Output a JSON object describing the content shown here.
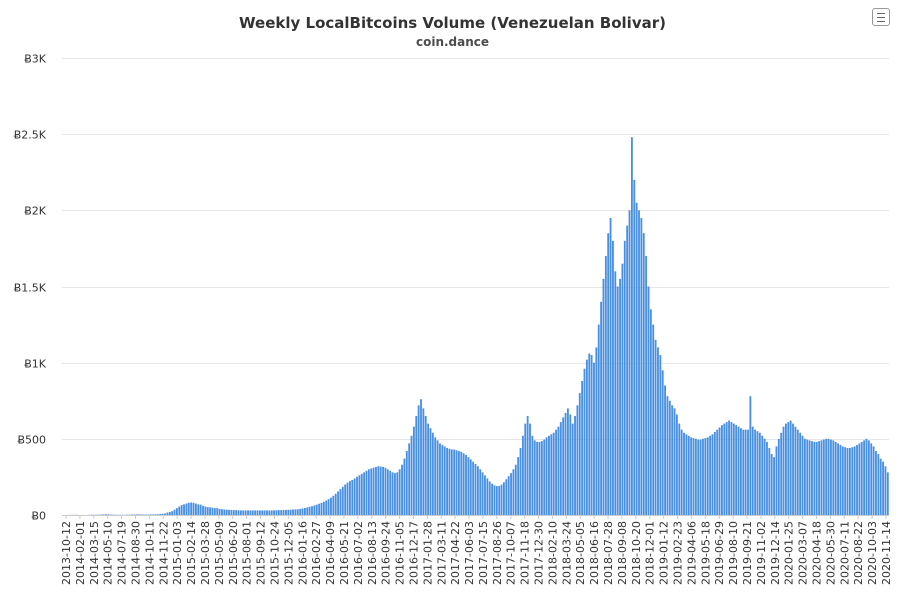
{
  "chart_data": {
    "type": "bar",
    "title": "Weekly LocalBitcoins Volume (Venezuelan Bolivar)",
    "subtitle": "coin.dance",
    "xlabel": "",
    "ylabel": "",
    "ylim": [
      0,
      3000
    ],
    "grid": true,
    "legend": "none",
    "bar_color": "#4a90e2",
    "y_ticks": [
      {
        "value": 0,
        "label": "Ƀ0"
      },
      {
        "value": 500,
        "label": "Ƀ500"
      },
      {
        "value": 1000,
        "label": "Ƀ1K"
      },
      {
        "value": 1500,
        "label": "Ƀ1.5K"
      },
      {
        "value": 2000,
        "label": "Ƀ2K"
      },
      {
        "value": 2500,
        "label": "Ƀ2.5K"
      },
      {
        "value": 3000,
        "label": "Ƀ3K"
      }
    ],
    "x_tick_labels": [
      "2013-10-12",
      "2014-02-01",
      "2014-03-15",
      "2014-05-10",
      "2014-07-19",
      "2014-08-30",
      "2014-10-11",
      "2014-11-22",
      "2015-01-03",
      "2015-02-14",
      "2015-03-28",
      "2015-05-09",
      "2015-06-20",
      "2015-08-01",
      "2015-09-12",
      "2015-10-24",
      "2015-12-05",
      "2016-01-16",
      "2016-02-27",
      "2016-04-09",
      "2016-05-21",
      "2016-07-02",
      "2016-08-13",
      "2016-09-24",
      "2016-11-05",
      "2016-12-17",
      "2017-01-28",
      "2017-03-11",
      "2017-04-22",
      "2017-06-03",
      "2017-07-15",
      "2017-08-26",
      "2017-10-07",
      "2017-11-18",
      "2017-12-30",
      "2018-02-10",
      "2018-03-24",
      "2018-05-05",
      "2018-06-16",
      "2018-07-28",
      "2018-09-08",
      "2018-10-20",
      "2018-12-01",
      "2019-01-12",
      "2019-02-23",
      "2019-04-06",
      "2019-05-18",
      "2019-06-29",
      "2019-08-10",
      "2019-09-21",
      "2019-11-02",
      "2019-12-14",
      "2020-01-25",
      "2020-03-07",
      "2020-04-18",
      "2020-05-30",
      "2020-07-11",
      "2020-08-22",
      "2020-10-03",
      "2020-11-14"
    ],
    "series": [
      {
        "values": [
          0,
          0,
          0,
          1,
          1,
          1,
          1,
          0,
          0,
          0,
          0,
          1,
          2,
          2,
          2,
          2,
          3,
          4,
          5,
          4,
          3,
          2,
          2,
          2,
          1,
          1,
          1,
          2,
          2,
          3,
          3,
          4,
          4,
          4,
          3,
          3,
          3,
          4,
          4,
          4,
          5,
          7,
          8,
          10,
          16,
          20,
          25,
          35,
          45,
          55,
          65,
          70,
          75,
          80,
          82,
          80,
          75,
          70,
          68,
          60,
          55,
          52,
          50,
          48,
          45,
          45,
          40,
          38,
          36,
          35,
          34,
          33,
          32,
          32,
          31,
          30,
          30,
          30,
          30,
          30,
          30,
          30,
          30,
          30,
          30,
          30,
          30,
          30,
          30,
          31,
          31,
          32,
          32,
          33,
          33,
          34,
          35,
          36,
          37,
          38,
          40,
          43,
          46,
          50,
          54,
          58,
          63,
          68,
          74,
          80,
          87,
          95,
          104,
          114,
          126,
          140,
          155,
          170,
          185,
          200,
          212,
          222,
          230,
          240,
          250,
          260,
          270,
          280,
          290,
          300,
          305,
          310,
          315,
          320,
          318,
          315,
          310,
          300,
          290,
          280,
          275,
          280,
          300,
          330,
          370,
          420,
          470,
          520,
          580,
          650,
          720,
          760,
          700,
          650,
          600,
          570,
          540,
          510,
          490,
          470,
          460,
          450,
          440,
          435,
          430,
          430,
          425,
          420,
          415,
          405,
          395,
          380,
          365,
          350,
          335,
          320,
          300,
          280,
          260,
          240,
          220,
          205,
          195,
          190,
          190,
          200,
          215,
          235,
          255,
          275,
          300,
          330,
          380,
          440,
          520,
          600,
          650,
          600,
          520,
          490,
          480,
          480,
          485,
          495,
          510,
          520,
          530,
          540,
          560,
          580,
          610,
          640,
          670,
          700,
          660,
          600,
          650,
          720,
          800,
          880,
          960,
          1020,
          1060,
          1050,
          1000,
          1100,
          1250,
          1400,
          1550,
          1700,
          1850,
          1950,
          1800,
          1600,
          1500,
          1550,
          1650,
          1800,
          1900,
          2000,
          2480,
          2200,
          2050,
          2000,
          1950,
          1850,
          1700,
          1500,
          1350,
          1250,
          1150,
          1100,
          1050,
          950,
          850,
          780,
          750,
          720,
          700,
          660,
          600,
          560,
          540,
          530,
          520,
          510,
          505,
          500,
          495,
          495,
          500,
          505,
          510,
          520,
          530,
          545,
          560,
          575,
          590,
          600,
          610,
          620,
          610,
          600,
          590,
          580,
          570,
          560,
          560,
          560,
          780,
          580,
          560,
          550,
          540,
          520,
          500,
          480,
          440,
          400,
          380,
          450,
          500,
          540,
          580,
          600,
          610,
          620,
          600,
          580,
          560,
          540,
          520,
          500,
          495,
          490,
          485,
          480,
          480,
          485,
          490,
          495,
          500,
          500,
          495,
          490,
          480,
          470,
          460,
          450,
          445,
          440,
          440,
          445,
          450,
          460,
          470,
          480,
          490,
          500,
          490,
          470,
          450,
          420,
          400,
          370,
          350,
          320,
          280
        ]
      }
    ]
  }
}
